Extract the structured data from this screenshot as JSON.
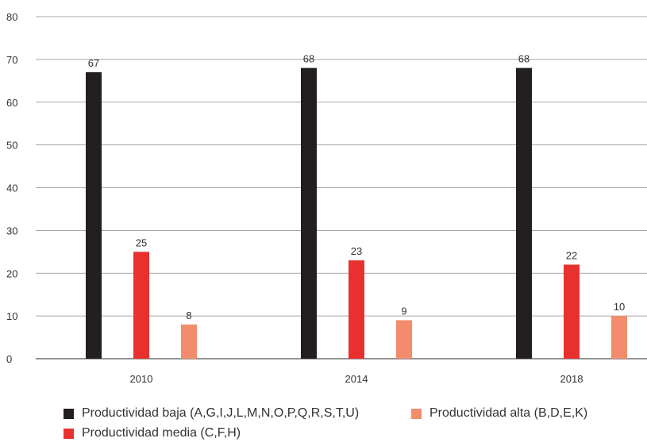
{
  "chart_data": {
    "type": "bar",
    "categories": [
      "2010",
      "2014",
      "2018"
    ],
    "series": [
      {
        "name": "Productividad baja (A,G,I,J,L,M,N,O,P,Q,R,S,T,U)",
        "color": "#231f20",
        "values": [
          67,
          68,
          68
        ],
        "labels": [
          "67",
          "68",
          "68"
        ]
      },
      {
        "name": "Productividad media (C,F,H)",
        "color": "#e8312f",
        "values": [
          25,
          23,
          22
        ],
        "labels": [
          "25",
          "23",
          "22"
        ]
      },
      {
        "name": "Productividad alta (B,D,E,K)",
        "color": "#f28c6c",
        "values": [
          8,
          9,
          10
        ],
        "labels": [
          "8",
          "9",
          "10"
        ]
      }
    ],
    "yticks": [
      "0",
      "10",
      "20",
      "30",
      "40",
      "50",
      "60",
      "70",
      "80"
    ],
    "ylim": [
      0,
      80
    ],
    "grid": true,
    "legend_position": "bottom"
  }
}
